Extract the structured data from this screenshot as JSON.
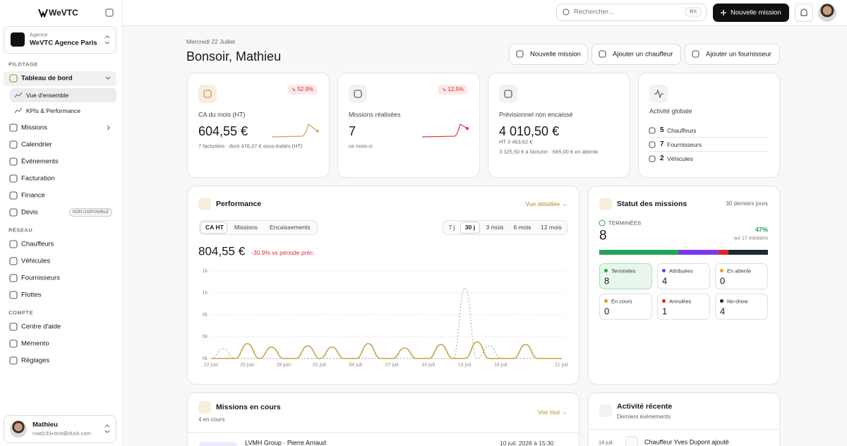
{
  "sidebar": {
    "logo": "WeVTC",
    "agency_label": "Agence",
    "agency_name": "WeVTC Agence Paris",
    "sections": [
      {
        "title": "PILOTAGE",
        "items": [
          {
            "label": "Tableau de bord",
            "children": [
              {
                "label": "Vue d'ensemble"
              },
              {
                "label": "KPIs & Performance"
              }
            ]
          },
          {
            "label": "Missions"
          },
          {
            "label": "Calendrier"
          },
          {
            "label": "Événements"
          },
          {
            "label": "Facturation"
          },
          {
            "label": "Finance"
          },
          {
            "label": "Devis",
            "badge": "NON DISPONIBLE"
          }
        ]
      },
      {
        "title": "RÉSEAU",
        "items": [
          {
            "label": "Chauffeurs"
          },
          {
            "label": "Véhicules"
          },
          {
            "label": "Fournisseurs"
          },
          {
            "label": "Flottes"
          }
        ]
      },
      {
        "title": "COMPTE",
        "items": [
          {
            "label": "Centre d'aide"
          },
          {
            "label": "Mémento"
          },
          {
            "label": "Réglages"
          }
        ]
      }
    ],
    "user": {
      "name": "Mathieu",
      "email": "madz33+test@duck.com"
    }
  },
  "topbar": {
    "search": "Rechercher...",
    "shortcut": "⌘K",
    "new_mission": "Nouvelle mission"
  },
  "header": {
    "date": "Mercredi 22 Juillet",
    "greeting": "Bonsoir, Mathieu",
    "actions": [
      "Nouvelle mission",
      "Ajouter un chauffeur",
      "Ajouter un fournisseur"
    ]
  },
  "kpis": [
    {
      "label": "CA du mois (HT)",
      "value": "604,55 €",
      "badge": "↘ 52.9%",
      "notes": [
        "7 facturées · dont 476,37 € sous-traités (HT)"
      ]
    },
    {
      "label": "Missions réalisées",
      "value": "7",
      "badge": "↘ 12.5%",
      "notes": [
        "ce mois-ci"
      ]
    },
    {
      "label": "Prévisionnel non encaissé",
      "value": "4 010,50 €",
      "notes": [
        "HT 3 463,62 €",
        "3 325,50 € à facturer · 685,00 € en attente"
      ]
    }
  ],
  "activity": {
    "title": "Activité globale",
    "rows": [
      {
        "count": "5",
        "label": "Chauffeurs"
      },
      {
        "count": "7",
        "label": "Fournisseurs"
      },
      {
        "count": "2",
        "label": "Véhicules"
      }
    ]
  },
  "performance": {
    "title": "Performance",
    "link": "Vue détaillée →",
    "tabs": [
      "CA HT",
      "Missions",
      "Encaissements"
    ],
    "ranges": [
      "7 j",
      "30 j",
      "3 mois",
      "6 mois",
      "12 mois"
    ],
    "total": "804,55 €",
    "delta": "-30.9% vs période préc.",
    "chart": {
      "type": "line",
      "categories": [
        "22 juin",
        null,
        null,
        "25 juin",
        null,
        null,
        "28 juin",
        null,
        null,
        "01 juil.",
        null,
        null,
        "04 juil.",
        null,
        null,
        "07 juil.",
        null,
        null,
        "10 juil.",
        null,
        null,
        "13 juil.",
        null,
        null,
        "16 juil.",
        null,
        null,
        null,
        null,
        "21 juil."
      ],
      "series": [
        {
          "color": "#c6a449",
          "values": [
            0,
            0,
            0,
            170,
            0,
            130,
            0,
            0,
            145,
            0,
            130,
            0,
            0,
            170,
            0,
            0,
            120,
            0,
            0,
            160,
            0,
            0,
            190,
            0,
            0,
            0,
            160,
            0,
            0,
            0
          ]
        },
        {
          "color": "#a3a3a3",
          "dashed": true,
          "values": [
            0,
            110,
            0,
            0,
            0,
            0,
            0,
            0,
            0,
            0,
            0,
            0,
            0,
            0,
            0,
            0,
            0,
            0,
            0,
            0,
            0,
            806,
            0,
            145,
            0,
            0,
            0,
            0,
            0,
            0
          ]
        }
      ],
      "ylim": [
        0,
        1000
      ],
      "yticks": [
        {
          "value": 0,
          "label": "0k"
        },
        {
          "value": 250,
          "label": "0k"
        },
        {
          "value": 500,
          "label": "0k"
        },
        {
          "value": 750,
          "label": "1k"
        },
        {
          "value": 1000,
          "label": "1k"
        }
      ],
      "grid": true
    }
  },
  "status": {
    "title": "Statut des missions",
    "period": "30 derniers jours",
    "done_label": "TERMINÉES",
    "done_count": "8",
    "percent": "47%",
    "of": "sur 17 missions",
    "items": [
      {
        "name": "Terminées",
        "color": "#22a355",
        "count": 8
      },
      {
        "name": "Attribuées",
        "color": "#7c3aed",
        "count": 4
      },
      {
        "name": "En attente",
        "color": "#f59e0b",
        "count": 0
      },
      {
        "name": "En cours",
        "color": "#d4a017",
        "count": 0
      },
      {
        "name": "Annulées",
        "color": "#dc2626",
        "count": 1
      },
      {
        "name": "No-show",
        "color": "#1f2937",
        "count": 4
      }
    ]
  },
  "missions": {
    "title": "Missions en cours",
    "subtitle": "4 en cours",
    "link": "Voir tout →",
    "rows": [
      {
        "client": "LVMH Group · Pierre Arnaud",
        "date": "10 juil. 2026 à 15:30"
      }
    ]
  },
  "recent": {
    "title": "Activité récente",
    "subtitle": "Derniers événements",
    "rows": [
      {
        "date": "18 juil.",
        "text": "Chauffeur Yves Dupont ajouté"
      }
    ]
  }
}
